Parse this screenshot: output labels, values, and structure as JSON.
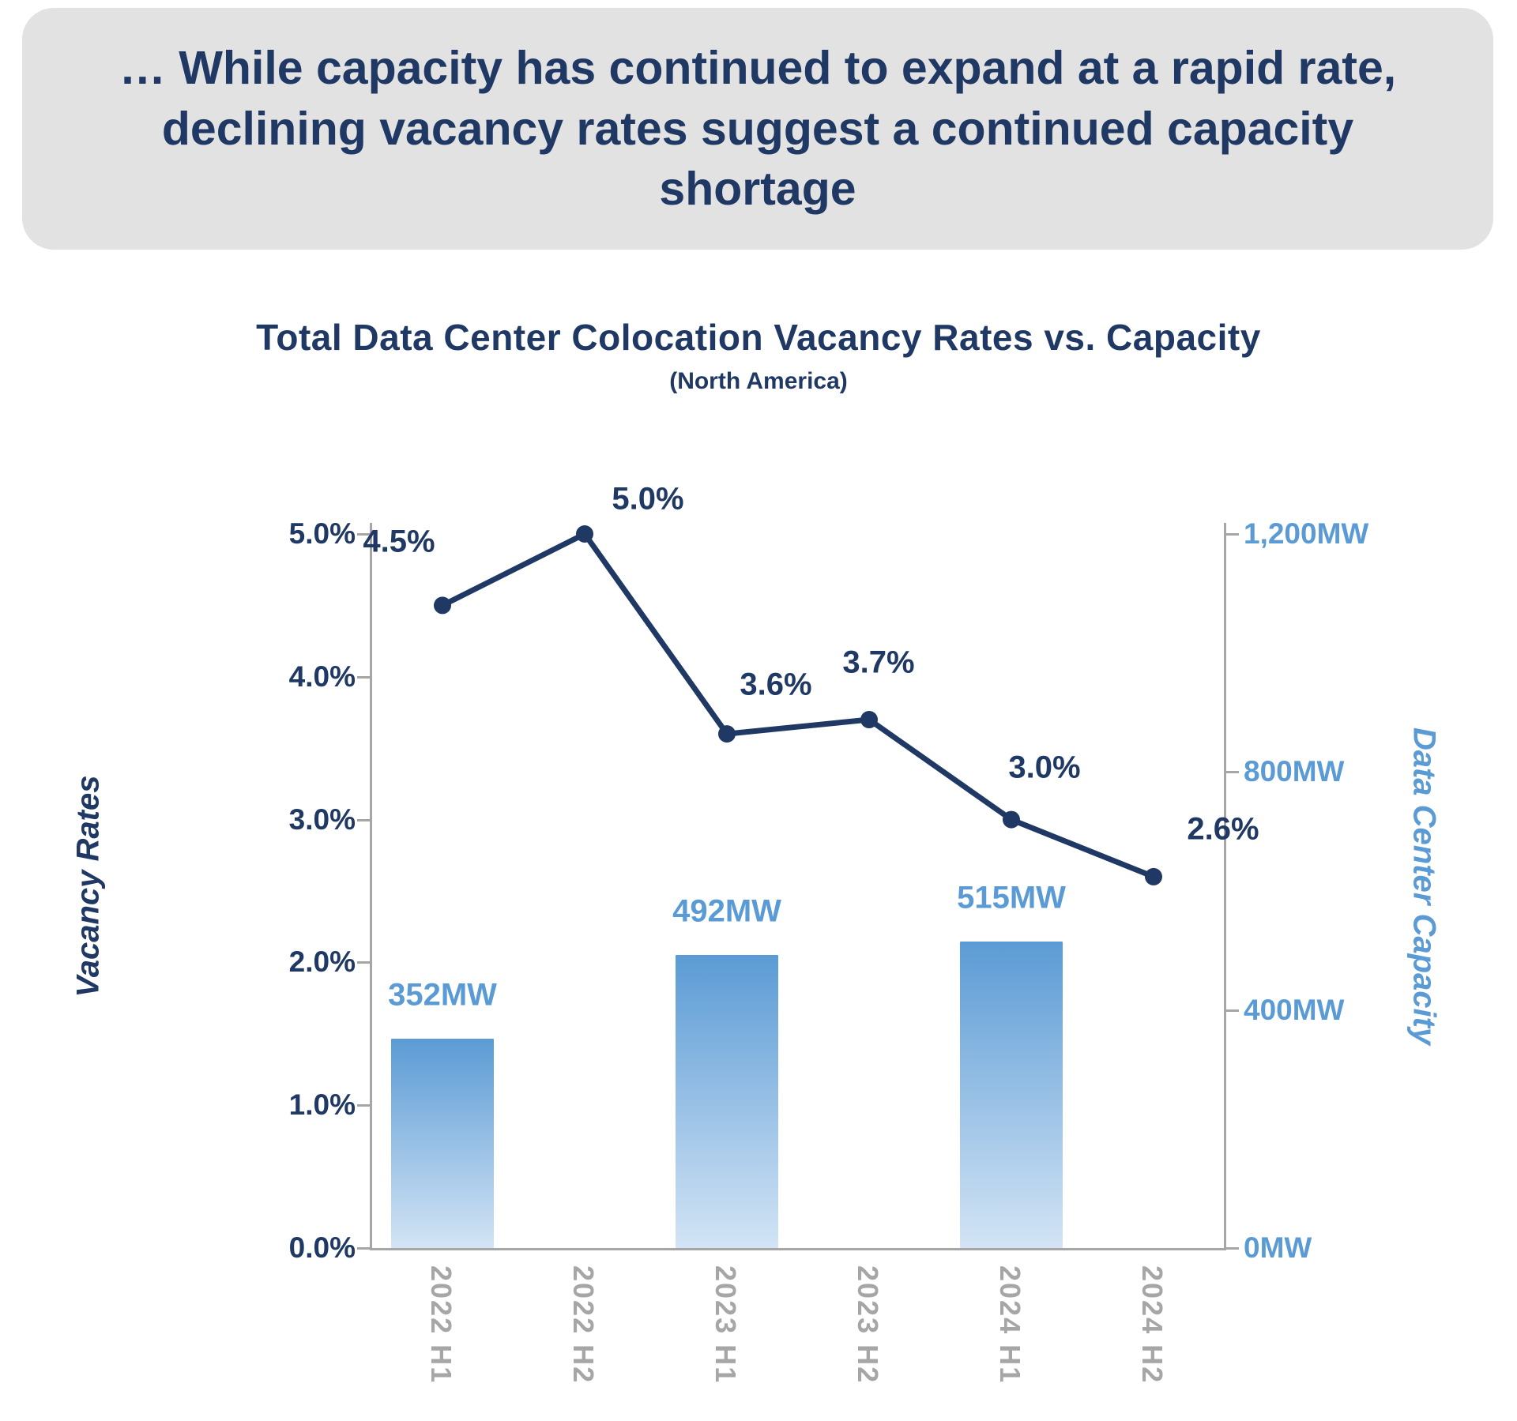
{
  "header": {
    "text": "… While capacity has continued to expand at a rapid rate, declining vacancy rates suggest a continued capacity shortage"
  },
  "chart_data": {
    "type": "combo-line-bar",
    "title": "Total Data Center Colocation Vacancy Rates vs. Capacity",
    "subtitle": "(North America)",
    "categories": [
      "2022 H1",
      "2022 H2",
      "2023 H1",
      "2023 H2",
      "2024 H1",
      "2024 H2"
    ],
    "series": [
      {
        "name": "Vacancy Rates",
        "type": "line",
        "axis": "left",
        "values": [
          4.5,
          5.0,
          3.6,
          3.7,
          3.0,
          2.6
        ],
        "point_labels": [
          "4.5%",
          "5.0%",
          "3.6%",
          "3.7%",
          "3.0%",
          "2.6%"
        ]
      },
      {
        "name": "Data Center Capacity",
        "type": "bar",
        "axis": "right",
        "values": [
          352,
          null,
          492,
          null,
          515,
          null
        ],
        "bar_labels": [
          "352MW",
          null,
          "492MW",
          null,
          "515MW",
          null
        ]
      }
    ],
    "left_axis": {
      "title": "Vacancy Rates",
      "min": 0,
      "max": 5,
      "ticks": [
        "0.0%",
        "1.0%",
        "2.0%",
        "3.0%",
        "4.0%",
        "5.0%"
      ]
    },
    "right_axis": {
      "title": "Data Center Capacity",
      "min": 0,
      "max": 1200,
      "ticks": [
        "0MW",
        "400MW",
        "800MW",
        "1,200MW"
      ]
    },
    "grid": false,
    "legend": "none"
  },
  "colors": {
    "navy": "#1F3864",
    "light_blue": "#5B9BD5",
    "bar_gradient_top": "#5B9BD5",
    "bar_gradient_bottom": "#D3E4F5",
    "axis_line": "#A6A6A6",
    "x_label_gray": "#A6A6A6",
    "header_bg": "#E2E2E2"
  }
}
